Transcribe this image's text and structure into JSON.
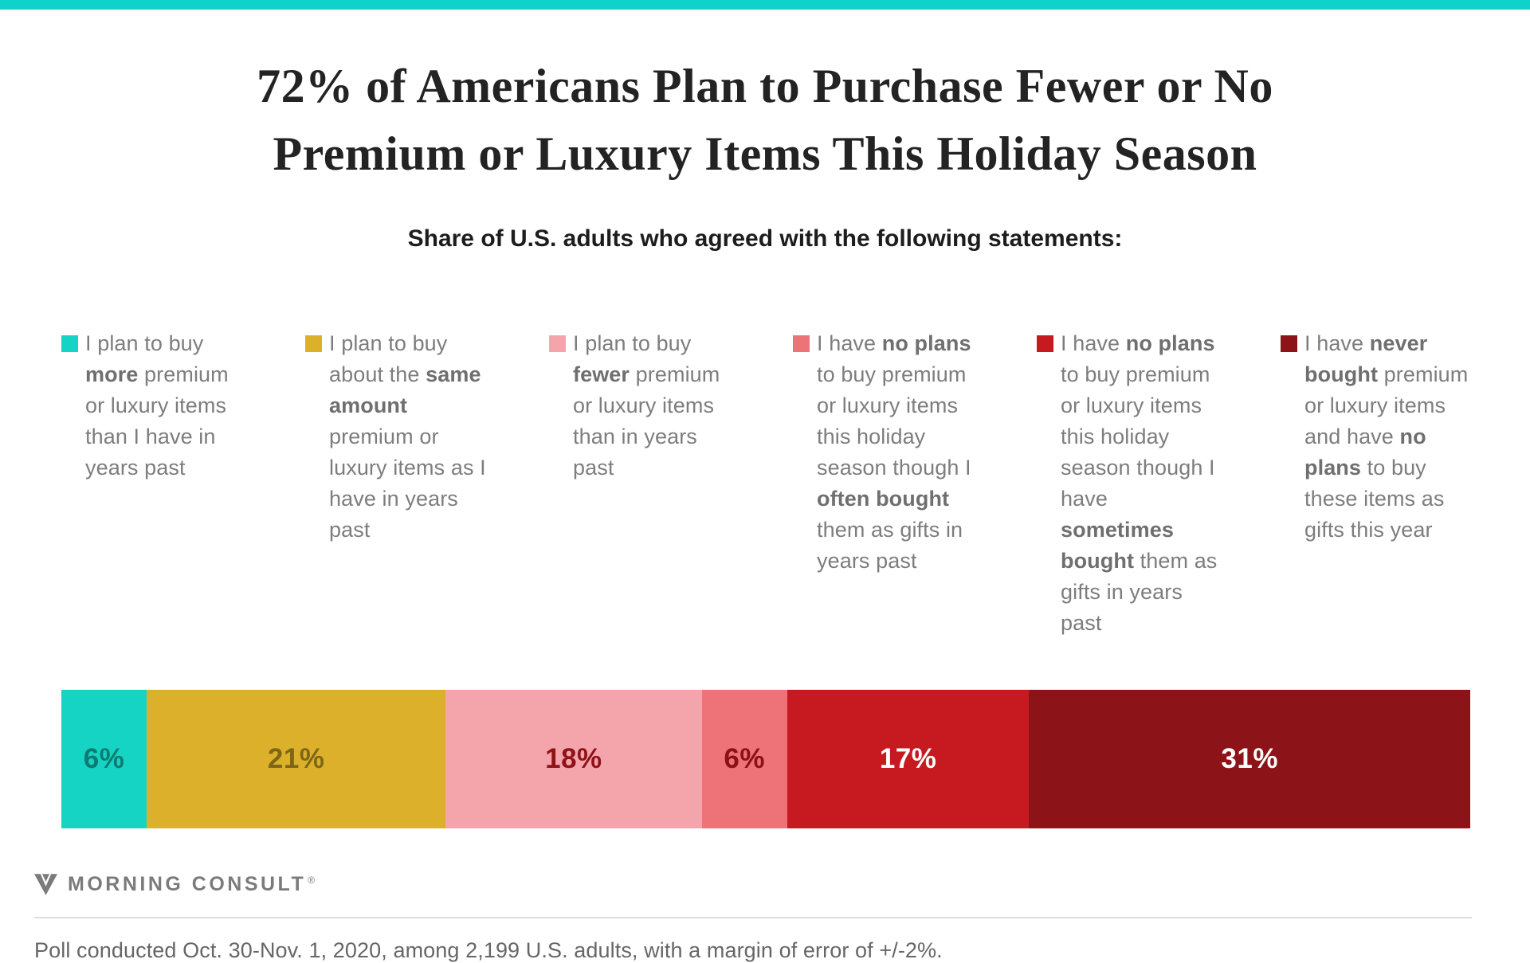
{
  "colors": {
    "accent_bar": "#0fd2c8",
    "divider": "#dcdcdc",
    "title_text": "#232323",
    "legend_text": "#7d7d7d",
    "footer_text": "#666666",
    "brand_gray": "#7b7b7b"
  },
  "header": {
    "title_line1": "72% of Americans Plan to Purchase Fewer or No",
    "title_line2": "Premium or Luxury Items This Holiday Season",
    "subtitle": "Share of U.S. adults who agreed with the following statements:"
  },
  "chart_data": {
    "type": "bar",
    "variant": "stacked-horizontal",
    "orientation": "horizontal",
    "unit": "percent",
    "title": "72% of Americans Plan to Purchase Fewer or No Premium or Luxury Items This Holiday Season",
    "subtitle": "Share of U.S. adults who agreed with the following statements:",
    "legend_position": "top",
    "grid": false,
    "axes_shown": false,
    "labeled_total": 99,
    "series": [
      {
        "name": "I plan to buy more premium or luxury items than I have in years past",
        "label_rich": [
          {
            "t": "I plan to buy "
          },
          {
            "t": "more",
            "b": true
          },
          {
            "t": " premium or luxury items than I have in years past"
          }
        ],
        "value": 6,
        "value_label": "6%",
        "color": "#15d4c4",
        "value_label_color": "#0d7b72"
      },
      {
        "name": "I plan to buy about the same amount premium or luxury items as I have in years past",
        "label_rich": [
          {
            "t": "I plan to buy about the "
          },
          {
            "t": "same amount",
            "b": true
          },
          {
            "t": " premium or luxury items as I have in years past"
          }
        ],
        "value": 21,
        "value_label": "21%",
        "color": "#ddb02c",
        "value_label_color": "#7d6716"
      },
      {
        "name": "I plan to buy fewer premium or luxury items than in years past",
        "label_rich": [
          {
            "t": "I plan to buy "
          },
          {
            "t": "fewer",
            "b": true
          },
          {
            "t": " premium or luxury items than in years past"
          }
        ],
        "value": 18,
        "value_label": "18%",
        "color": "#f4a5ab",
        "value_label_color": "#8e1318"
      },
      {
        "name": "I have no plans to buy premium or luxury items this holiday season though I often bought them as gifts in years past",
        "label_rich": [
          {
            "t": "I have "
          },
          {
            "t": "no plans",
            "b": true
          },
          {
            "t": " to buy premium or luxury items this holiday season though I "
          },
          {
            "t": "often bought",
            "b": true
          },
          {
            "t": " them as gifts in years past"
          }
        ],
        "value": 6,
        "value_label": "6%",
        "color": "#ed7379",
        "value_label_color": "#8c1016"
      },
      {
        "name": "I have no plans to buy premium or luxury items this holiday season though I have sometimes bought them as gifts in years past",
        "label_rich": [
          {
            "t": "I have "
          },
          {
            "t": "no plans",
            "b": true
          },
          {
            "t": " to buy premium or luxury items this holiday season though I have "
          },
          {
            "t": "sometimes bought",
            "b": true
          },
          {
            "t": " them as gifts in years past"
          }
        ],
        "value": 17,
        "value_label": "17%",
        "color": "#c61a20",
        "value_label_color": "#ffffff"
      },
      {
        "name": "I have never bought premium or luxury items and have no plans to buy these items as gifts this year",
        "label_rich": [
          {
            "t": "I have "
          },
          {
            "t": "never bought",
            "b": true
          },
          {
            "t": " premium or luxury items and have "
          },
          {
            "t": "no plans",
            "b": true
          },
          {
            "t": " to buy these items as gifts this year"
          }
        ],
        "value": 31,
        "value_label": "31%",
        "color": "#8c1418",
        "value_label_color": "#ffffff"
      }
    ]
  },
  "footer": {
    "brand": "MORNING CONSULT",
    "brand_registered": "®",
    "source_note": "Poll conducted Oct. 30-Nov. 1, 2020, among 2,199 U.S. adults, with a margin of error of +/-2%."
  }
}
